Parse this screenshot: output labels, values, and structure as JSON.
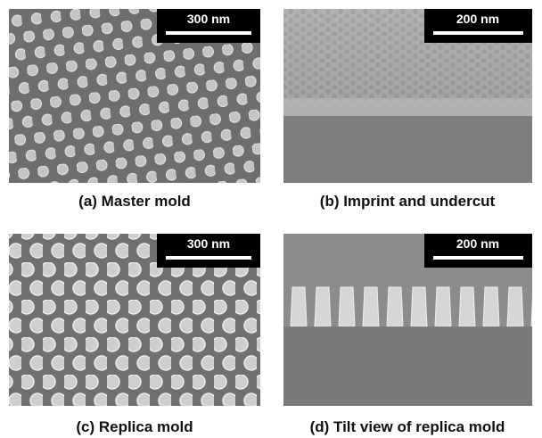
{
  "panels": [
    {
      "scale_bar": "300 nm",
      "caption": "(a) Master mold"
    },
    {
      "scale_bar": "200 nm",
      "caption": "(b) Imprint and undercut"
    },
    {
      "scale_bar": "300 nm",
      "caption": "(c) Replica mold"
    },
    {
      "scale_bar": "200 nm",
      "caption": "(d) Tilt view of replica mold"
    }
  ]
}
